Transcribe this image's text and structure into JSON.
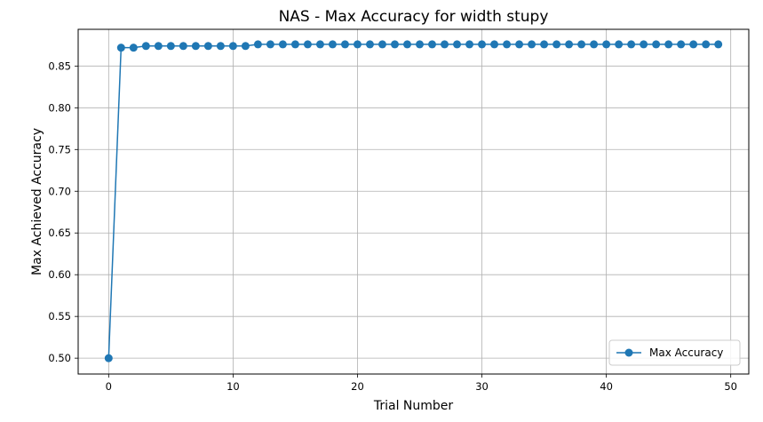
{
  "chart_data": {
    "type": "line",
    "title": "NAS - Max Accuracy for width stupy",
    "xlabel": "Trial Number",
    "ylabel": "Max Achieved Accuracy",
    "xlim": [
      -2.45,
      51.45
    ],
    "ylim": [
      0.481,
      0.894
    ],
    "xticks": [
      0,
      10,
      20,
      30,
      40,
      50
    ],
    "xtick_labels": [
      "0",
      "10",
      "20",
      "30",
      "40",
      "50"
    ],
    "yticks": [
      0.5,
      0.55,
      0.6,
      0.65,
      0.7,
      0.75,
      0.8,
      0.85
    ],
    "ytick_labels": [
      "0.50",
      "0.55",
      "0.60",
      "0.65",
      "0.70",
      "0.75",
      "0.80",
      "0.85"
    ],
    "grid": true,
    "legend_position": "bottom-right",
    "series": [
      {
        "name": "Max Accuracy",
        "color": "#1f77b4",
        "marker": "circle",
        "x": [
          0,
          1,
          2,
          3,
          4,
          5,
          6,
          7,
          8,
          9,
          10,
          11,
          12,
          13,
          14,
          15,
          16,
          17,
          18,
          19,
          20,
          21,
          22,
          23,
          24,
          25,
          26,
          27,
          28,
          29,
          30,
          31,
          32,
          33,
          34,
          35,
          36,
          37,
          38,
          39,
          40,
          41,
          42,
          43,
          44,
          45,
          46,
          47,
          48,
          49
        ],
        "y": [
          0.5,
          0.872,
          0.872,
          0.874,
          0.874,
          0.874,
          0.874,
          0.874,
          0.874,
          0.874,
          0.874,
          0.874,
          0.876,
          0.876,
          0.876,
          0.876,
          0.876,
          0.876,
          0.876,
          0.876,
          0.876,
          0.876,
          0.876,
          0.876,
          0.876,
          0.876,
          0.876,
          0.876,
          0.876,
          0.876,
          0.876,
          0.876,
          0.876,
          0.876,
          0.876,
          0.876,
          0.876,
          0.876,
          0.876,
          0.876,
          0.876,
          0.876,
          0.876,
          0.876,
          0.876,
          0.876,
          0.876,
          0.876,
          0.876,
          0.876
        ]
      }
    ]
  }
}
